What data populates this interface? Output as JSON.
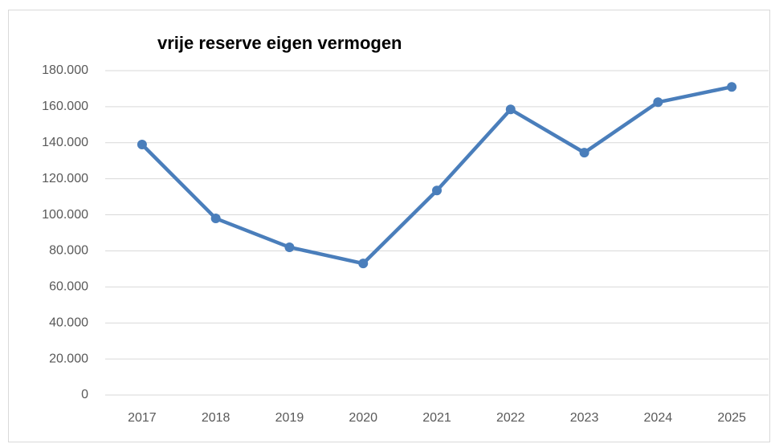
{
  "chart_data": {
    "type": "line",
    "title": "vrije reserve eigen vermogen",
    "categories": [
      "2017",
      "2018",
      "2019",
      "2020",
      "2021",
      "2022",
      "2023",
      "2024",
      "2025"
    ],
    "series": [
      {
        "name": "vrije reserve eigen vermogen",
        "color": "#4a7ebb",
        "values": [
          139000,
          98000,
          82000,
          73000,
          113500,
          158500,
          134500,
          162500,
          171000
        ]
      }
    ],
    "ylim": [
      0,
      180000
    ],
    "yticks": [
      0,
      {
        "value": 20000,
        "label": "20.000"
      },
      {
        "value": 40000,
        "label": "40.000"
      },
      {
        "value": 60000,
        "label": "60.000"
      },
      {
        "value": 80000,
        "label": "80.000"
      },
      {
        "value": 100000,
        "label": "100.000"
      },
      {
        "value": 120000,
        "label": "120.000"
      },
      {
        "value": 140000,
        "label": "140.000"
      },
      {
        "value": 160000,
        "label": "160.000"
      },
      {
        "value": 180000,
        "label": "180.000"
      }
    ],
    "grid": true
  }
}
